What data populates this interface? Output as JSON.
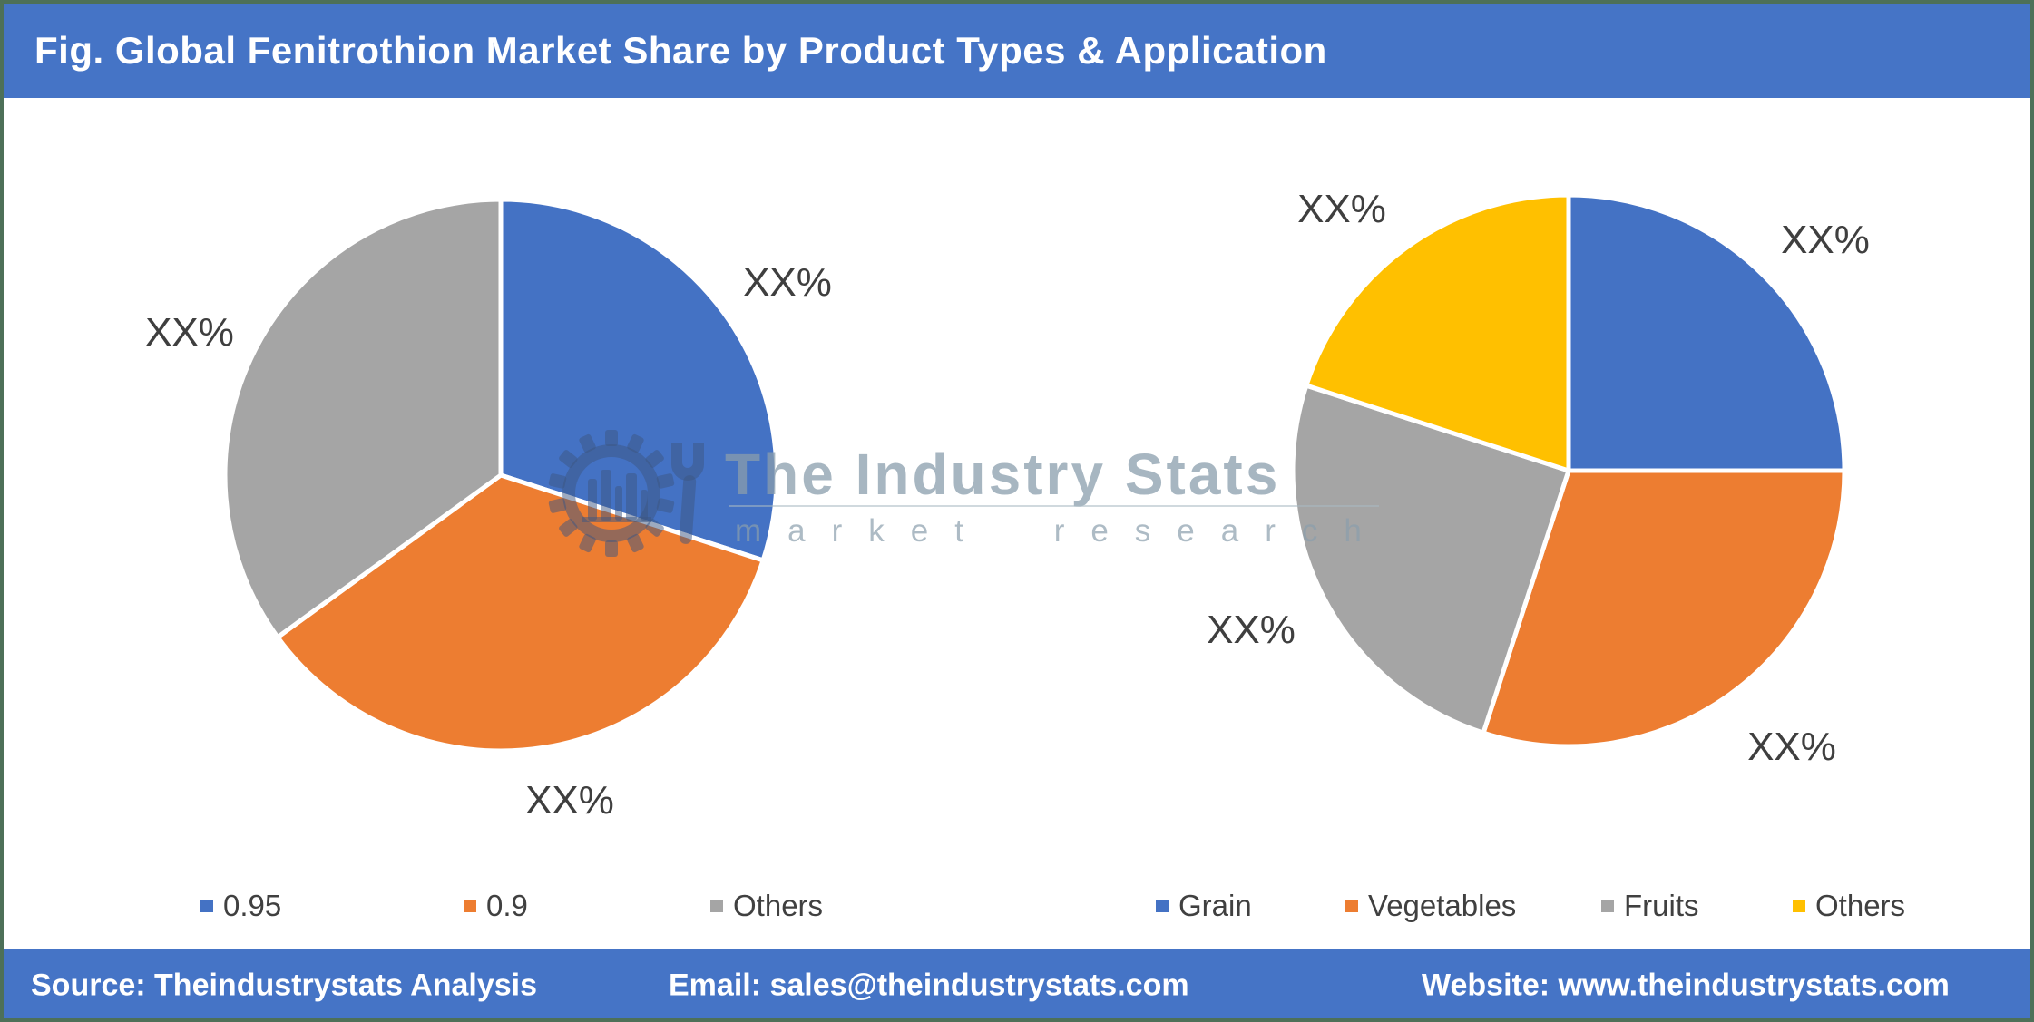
{
  "title": "Fig. Global Fenitrothion Market Share by Product Types & Application",
  "watermark": {
    "brand": "The Industry Stats",
    "tagline": "market research"
  },
  "footer": {
    "source": "Source: Theindustrystats Analysis",
    "email": "Email: sales@theindustrystats.com",
    "website": "Website: www.theindustrystats.com"
  },
  "colors": {
    "header_footer_bar": "#4574C6",
    "frame_border": "#4d7058",
    "slice_label_text": "#3f3f3f",
    "legend_text": "#404040",
    "blue": "#4472C4",
    "orange": "#ED7D31",
    "gray": "#A5A5A5",
    "yellow": "#FFC000"
  },
  "chart_data": [
    {
      "type": "pie",
      "name": "Global Fenitrothion Market Share by Product Types",
      "legend_position": "bottom",
      "start_angle": "top",
      "direction": "clockwise",
      "slices": [
        {
          "name": "0.95",
          "value": 30,
          "display_label": "XX%",
          "color": "#4472C4"
        },
        {
          "name": "0.9",
          "value": 35,
          "display_label": "XX%",
          "color": "#ED7D31"
        },
        {
          "name": "Others",
          "value": 35,
          "display_label": "XX%",
          "color": "#A5A5A5"
        }
      ]
    },
    {
      "type": "pie",
      "name": "Global Fenitrothion Market Share by Application",
      "legend_position": "bottom",
      "start_angle": "top",
      "direction": "clockwise",
      "slices": [
        {
          "name": "Grain",
          "value": 25,
          "display_label": "XX%",
          "color": "#4472C4"
        },
        {
          "name": "Vegetables",
          "value": 30,
          "display_label": "XX%",
          "color": "#ED7D31"
        },
        {
          "name": "Fruits",
          "value": 25,
          "display_label": "XX%",
          "color": "#A5A5A5"
        },
        {
          "name": "Others",
          "value": 20,
          "display_label": "XX%",
          "color": "#FFC000"
        }
      ]
    }
  ]
}
